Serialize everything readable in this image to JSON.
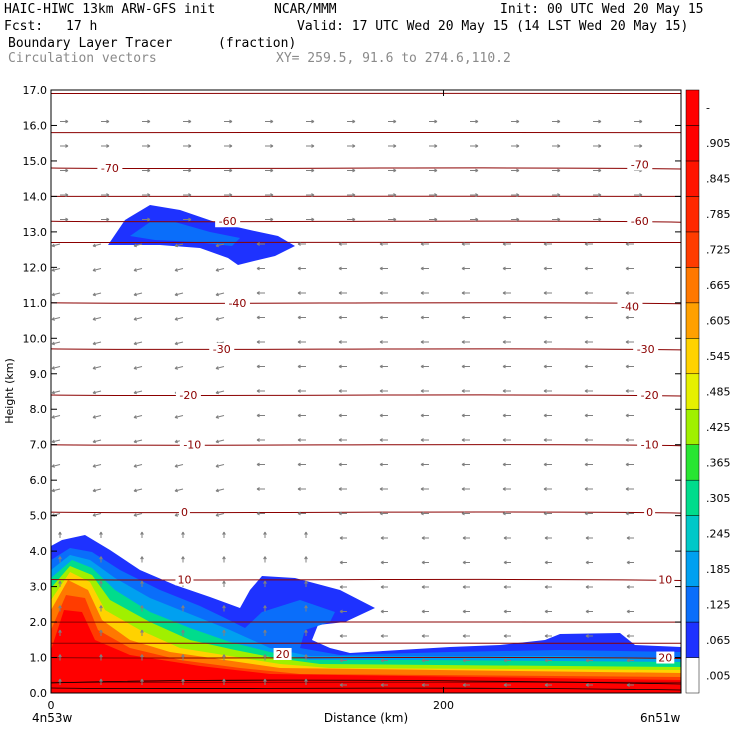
{
  "header": {
    "model": "HAIC-HIWC 13km ARW-GFS init",
    "org": "NCAR/MMM",
    "init": "Init: 00 UTC Wed 20 May 15",
    "fcst_label": "Fcst:",
    "fcst_value": "17 h",
    "valid": "Valid: 17 UTC Wed 20 May 15 (14 LST Wed 20 May 15)",
    "field": "Boundary Layer Tracer",
    "field_units": "(fraction)",
    "vectors": "Circulation vectors",
    "xy": "XY= 259.5, 91.6 to 274.6,110.2"
  },
  "colors": {
    "contour": "#8b0000",
    "vector": "#808080",
    "scale": [
      "#ffffff",
      "#1e32ff",
      "#0a6efa",
      "#00a0f0",
      "#00c8c8",
      "#00dc8c",
      "#28e632",
      "#a0f000",
      "#e6f000",
      "#ffd200",
      "#ffa000",
      "#ff7800",
      "#ff3c00",
      "#ff0000",
      "#ff0000"
    ]
  },
  "chart_data": {
    "type": "heatmap",
    "title": "Boundary Layer Tracer",
    "xlabel": "Distance (km)",
    "ylabel": "Height (km)",
    "xlim": [
      0,
      321
    ],
    "ylim": [
      0,
      17
    ],
    "x_ticks": [
      "0",
      "200"
    ],
    "x_tick_values": [
      0,
      200
    ],
    "x_end_labels": [
      "4n53w",
      "6n51w"
    ],
    "y_ticks": [
      "0.0",
      "1.0",
      "2.0",
      "3.0",
      "4.0",
      "5.0",
      "6.0",
      "7.0",
      "8.0",
      "9.0",
      "10.0",
      "11.0",
      "12.0",
      "13.0",
      "14.0",
      "15.0",
      "16.0",
      "17.0"
    ],
    "legend": {
      "placement": "right",
      "labels": [
        ".005",
        ".065",
        ".125",
        ".185",
        ".245",
        ".305",
        ".365",
        ".425",
        ".485",
        ".545",
        ".605",
        ".665",
        ".725",
        ".785",
        ".845",
        ".905",
        "-"
      ]
    },
    "isotherms": [
      {
        "label": "-70",
        "h": 14.8
      },
      {
        "label": "-60",
        "h": 13.3
      },
      {
        "label": "-40",
        "h": 11.0
      },
      {
        "label": "-30",
        "h": 9.7
      },
      {
        "label": "-20",
        "h": 8.4
      },
      {
        "label": "-10",
        "h": 7.0
      },
      {
        "label": "0",
        "h": 5.1
      },
      {
        "label": "10",
        "h": 3.2
      },
      {
        "label": "20",
        "h": 1.0
      }
    ],
    "isotherm_label_pos": [
      {
        "label": "-70",
        "x": 30,
        "h": 14.8
      },
      {
        "label": "-70",
        "x": 300,
        "h": 14.9
      },
      {
        "label": "-60",
        "x": 90,
        "h": 13.3
      },
      {
        "label": "-60",
        "x": 300,
        "h": 13.3
      },
      {
        "label": "-40",
        "x": 95,
        "h": 11.0
      },
      {
        "label": "-40",
        "x": 295,
        "h": 10.9
      },
      {
        "label": "-30",
        "x": 87,
        "h": 9.7
      },
      {
        "label": "-30",
        "x": 303,
        "h": 9.7
      },
      {
        "label": "-20",
        "x": 70,
        "h": 8.4
      },
      {
        "label": "-20",
        "x": 305,
        "h": 8.4
      },
      {
        "label": "-10",
        "x": 72,
        "h": 7.0
      },
      {
        "label": "-10",
        "x": 305,
        "h": 7.0
      },
      {
        "label": "0",
        "x": 68,
        "h": 5.1
      },
      {
        "label": "0",
        "x": 305,
        "h": 5.1
      },
      {
        "label": "10",
        "x": 68,
        "h": 3.2
      },
      {
        "label": "10",
        "x": 313,
        "h": 3.2
      },
      {
        "label": "20",
        "x": 118,
        "h": 1.1
      },
      {
        "label": "20",
        "x": 313,
        "h": 1.0
      }
    ]
  }
}
